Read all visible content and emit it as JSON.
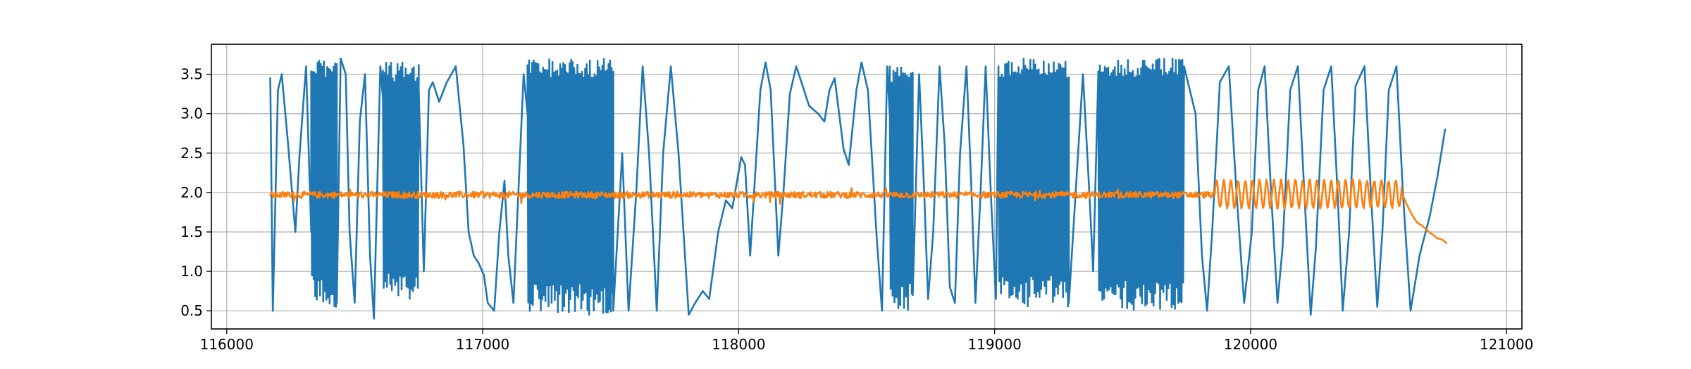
{
  "chart_data": {
    "type": "line",
    "title": "",
    "xlabel": "",
    "ylabel": "",
    "xlim": [
      115940,
      121060
    ],
    "ylim": [
      0.27,
      3.88
    ],
    "grid": true,
    "legend": "none",
    "x_ticks": [
      116000,
      117000,
      118000,
      119000,
      120000,
      121000
    ],
    "x_tick_labels": [
      "116000",
      "117000",
      "118000",
      "119000",
      "120000",
      "121000"
    ],
    "y_ticks": [
      0.5,
      1.0,
      1.5,
      2.0,
      2.5,
      3.0,
      3.5
    ],
    "y_tick_labels": [
      "0.5",
      "1.0",
      "1.5",
      "2.0",
      "2.5",
      "3.0",
      "3.5"
    ],
    "series": [
      {
        "color": "#1f77b4",
        "segments": [
          {
            "kind": "points",
            "pts": [
              [
                116170,
                3.45
              ],
              [
                116180,
                0.5
              ],
              [
                116200,
                3.3
              ],
              [
                116215,
                3.5
              ],
              [
                116240,
                2.6
              ],
              [
                116268,
                1.5
              ],
              [
                116285,
                2.5
              ],
              [
                116310,
                3.6
              ],
              [
                116330,
                1.5
              ]
            ]
          },
          {
            "kind": "osc",
            "x0": 116330,
            "x1": 116430,
            "n": 16,
            "lo": 0.55,
            "hi": 3.7
          },
          {
            "kind": "points",
            "pts": [
              [
                116430,
                0.6
              ],
              [
                116445,
                3.7
              ],
              [
                116465,
                3.5
              ],
              [
                116480,
                1.5
              ],
              [
                116500,
                0.6
              ],
              [
                116520,
                2.9
              ],
              [
                116540,
                3.5
              ],
              [
                116560,
                1.2
              ],
              [
                116575,
                0.4
              ],
              [
                116600,
                3.6
              ],
              [
                116610,
                3.2
              ]
            ]
          },
          {
            "kind": "osc",
            "x0": 116610,
            "x1": 116750,
            "n": 22,
            "lo": 0.6,
            "hi": 3.65
          },
          {
            "kind": "points",
            "pts": [
              [
                116750,
                3.3
              ],
              [
                116770,
                1.0
              ],
              [
                116790,
                3.3
              ],
              [
                116805,
                3.4
              ],
              [
                116830,
                3.15
              ],
              [
                116860,
                3.4
              ],
              [
                116895,
                3.6
              ],
              [
                116925,
                2.6
              ],
              [
                116945,
                1.5
              ],
              [
                116965,
                1.2
              ],
              [
                116985,
                1.1
              ],
              [
                117005,
                0.95
              ],
              [
                117020,
                0.6
              ],
              [
                117045,
                0.5
              ],
              [
                117065,
                1.5
              ],
              [
                117085,
                2.15
              ],
              [
                117100,
                1.2
              ],
              [
                117120,
                0.6
              ],
              [
                117160,
                3.5
              ],
              [
                117175,
                3.0
              ]
            ]
          },
          {
            "kind": "osc",
            "x0": 117175,
            "x1": 117510,
            "n": 55,
            "lo": 0.45,
            "hi": 3.7
          },
          {
            "kind": "points",
            "pts": [
              [
                117510,
                0.5
              ],
              [
                117545,
                2.5
              ],
              [
                117570,
                0.5
              ],
              [
                117600,
                2.0
              ],
              [
                117625,
                3.6
              ],
              [
                117650,
                2.5
              ],
              [
                117680,
                0.5
              ],
              [
                117705,
                2.5
              ],
              [
                117735,
                3.6
              ],
              [
                117765,
                2.5
              ],
              [
                117805,
                0.45
              ],
              [
                117830,
                0.6
              ],
              [
                117860,
                0.75
              ],
              [
                117885,
                0.65
              ],
              [
                117920,
                1.5
              ],
              [
                117950,
                1.9
              ],
              [
                117975,
                1.8
              ],
              [
                118010,
                2.45
              ],
              [
                118025,
                2.35
              ],
              [
                118045,
                1.2
              ],
              [
                118085,
                3.3
              ],
              [
                118105,
                3.65
              ],
              [
                118125,
                3.3
              ],
              [
                118155,
                1.2
              ],
              [
                118175,
                2.0
              ],
              [
                118200,
                3.25
              ],
              [
                118225,
                3.6
              ],
              [
                118245,
                3.4
              ],
              [
                118275,
                3.1
              ],
              [
                118310,
                3.0
              ],
              [
                118335,
                2.9
              ],
              [
                118355,
                3.3
              ],
              [
                118375,
                3.45
              ],
              [
                118410,
                2.55
              ],
              [
                118430,
                2.35
              ],
              [
                118460,
                3.3
              ],
              [
                118480,
                3.65
              ],
              [
                118505,
                3.3
              ],
              [
                118540,
                1.4
              ],
              [
                118560,
                0.5
              ],
              [
                118570,
                2.0
              ],
              [
                118580,
                3.6
              ],
              [
                118590,
                3.0
              ]
            ]
          },
          {
            "kind": "osc",
            "x0": 118590,
            "x1": 118680,
            "n": 12,
            "lo": 0.5,
            "hi": 3.6
          },
          {
            "kind": "points",
            "pts": [
              [
                118680,
                0.7
              ],
              [
                118705,
                3.5
              ],
              [
                118725,
                2.0
              ],
              [
                118740,
                0.65
              ],
              [
                118760,
                1.5
              ],
              [
                118785,
                3.6
              ],
              [
                118805,
                2.6
              ],
              [
                118825,
                0.8
              ],
              [
                118845,
                0.6
              ],
              [
                118865,
                2.5
              ],
              [
                118890,
                3.6
              ],
              [
                118910,
                2.0
              ],
              [
                118925,
                0.6
              ],
              [
                118945,
                2.0
              ],
              [
                118965,
                3.6
              ],
              [
                118985,
                2.0
              ],
              [
                119005,
                0.65
              ],
              [
                119015,
                3.6
              ]
            ]
          },
          {
            "kind": "osc",
            "x0": 119015,
            "x1": 119290,
            "n": 42,
            "lo": 0.55,
            "hi": 3.7
          },
          {
            "kind": "points",
            "pts": [
              [
                119290,
                0.6
              ],
              [
                119345,
                3.5
              ],
              [
                119370,
                2.0
              ],
              [
                119385,
                1.0
              ],
              [
                119405,
                3.5
              ]
            ]
          },
          {
            "kind": "osc",
            "x0": 119405,
            "x1": 119740,
            "n": 52,
            "lo": 0.5,
            "hi": 3.7
          },
          {
            "kind": "points",
            "pts": [
              [
                119740,
                3.6
              ],
              [
                119785,
                3.0
              ],
              [
                119810,
                1.2
              ],
              [
                119830,
                0.5
              ],
              [
                119850,
                1.5
              ],
              [
                119880,
                3.4
              ],
              [
                119915,
                3.6
              ],
              [
                119945,
                2.0
              ],
              [
                119975,
                0.6
              ],
              [
                120005,
                1.5
              ],
              [
                120030,
                3.3
              ],
              [
                120055,
                3.6
              ],
              [
                120080,
                2.0
              ],
              [
                120105,
                0.6
              ],
              [
                120125,
                1.3
              ],
              [
                120155,
                3.3
              ],
              [
                120185,
                3.6
              ],
              [
                120210,
                2.0
              ],
              [
                120235,
                0.45
              ],
              [
                120255,
                1.3
              ],
              [
                120285,
                3.3
              ],
              [
                120315,
                3.6
              ],
              [
                120340,
                2.0
              ],
              [
                120360,
                0.5
              ],
              [
                120385,
                1.5
              ],
              [
                120410,
                3.35
              ],
              [
                120445,
                3.6
              ],
              [
                120470,
                2.0
              ],
              [
                120495,
                0.55
              ],
              [
                120515,
                1.5
              ],
              [
                120540,
                3.3
              ],
              [
                120570,
                3.6
              ],
              [
                120595,
                2.0
              ],
              [
                120625,
                0.5
              ],
              [
                120660,
                1.2
              ],
              [
                120700,
                1.7
              ],
              [
                120730,
                2.2
              ],
              [
                120760,
                2.8
              ]
            ]
          }
        ]
      },
      {
        "color": "#ff7f0e",
        "segments": [
          {
            "kind": "noise",
            "x0": 116170,
            "x1": 119860,
            "mid": 1.97,
            "amp": 0.04,
            "spikes": 0.1
          },
          {
            "kind": "wave",
            "x0": 119860,
            "x1": 120590,
            "mid": 1.98,
            "amp": 0.17,
            "period": 28
          },
          {
            "kind": "points",
            "pts": [
              [
                120590,
                2.0
              ],
              [
                120610,
                1.85
              ],
              [
                120630,
                1.72
              ],
              [
                120650,
                1.62
              ],
              [
                120670,
                1.58
              ],
              [
                120690,
                1.52
              ],
              [
                120710,
                1.47
              ],
              [
                120730,
                1.42
              ],
              [
                120750,
                1.4
              ],
              [
                120765,
                1.36
              ]
            ]
          }
        ]
      }
    ]
  }
}
